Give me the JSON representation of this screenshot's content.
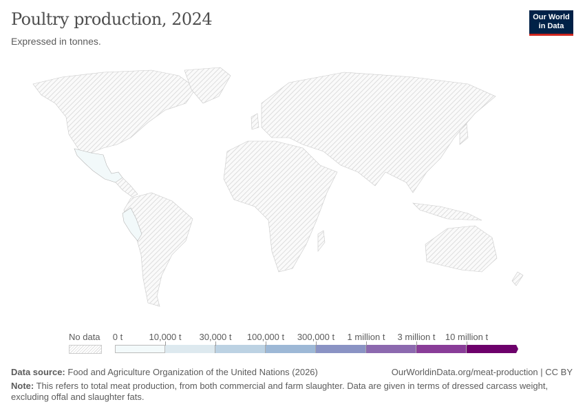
{
  "header": {
    "title": "Poultry production, 2024",
    "subtitle": "Expressed in tonnes.",
    "logo": "Our World in Data"
  },
  "legend": {
    "no_data_label": "No data",
    "bins": [
      {
        "label": "0 t",
        "color": "#f3fafb"
      },
      {
        "label": "10,000 t",
        "color": "#dde9ef"
      },
      {
        "label": "30,000 t",
        "color": "#bcd2e3"
      },
      {
        "label": "100,000 t",
        "color": "#9db8d6"
      },
      {
        "label": "300,000 t",
        "color": "#8a93c4"
      },
      {
        "label": "1 million t",
        "color": "#8c69af"
      },
      {
        "label": "3 million t",
        "color": "#893d98"
      },
      {
        "label": "10 million t",
        "color": "#6d016b"
      }
    ]
  },
  "map": {
    "colored_countries": [
      {
        "name": "Mexico",
        "bin": "0 t – 10,000 t"
      },
      {
        "name": "Peru",
        "bin": "0 t – 10,000 t"
      }
    ],
    "other_countries": "No data"
  },
  "footer": {
    "source_label": "Data source:",
    "source": "Food and Agriculture Organization of the United Nations (2026)",
    "url": "OurWorldinData.org/meat-production | CC BY",
    "note_label": "Note:",
    "note": "This refers to total meat production, from both commercial and farm slaughter. Data are given in terms of dressed carcass weight, excluding offal and slaughter fats."
  }
}
